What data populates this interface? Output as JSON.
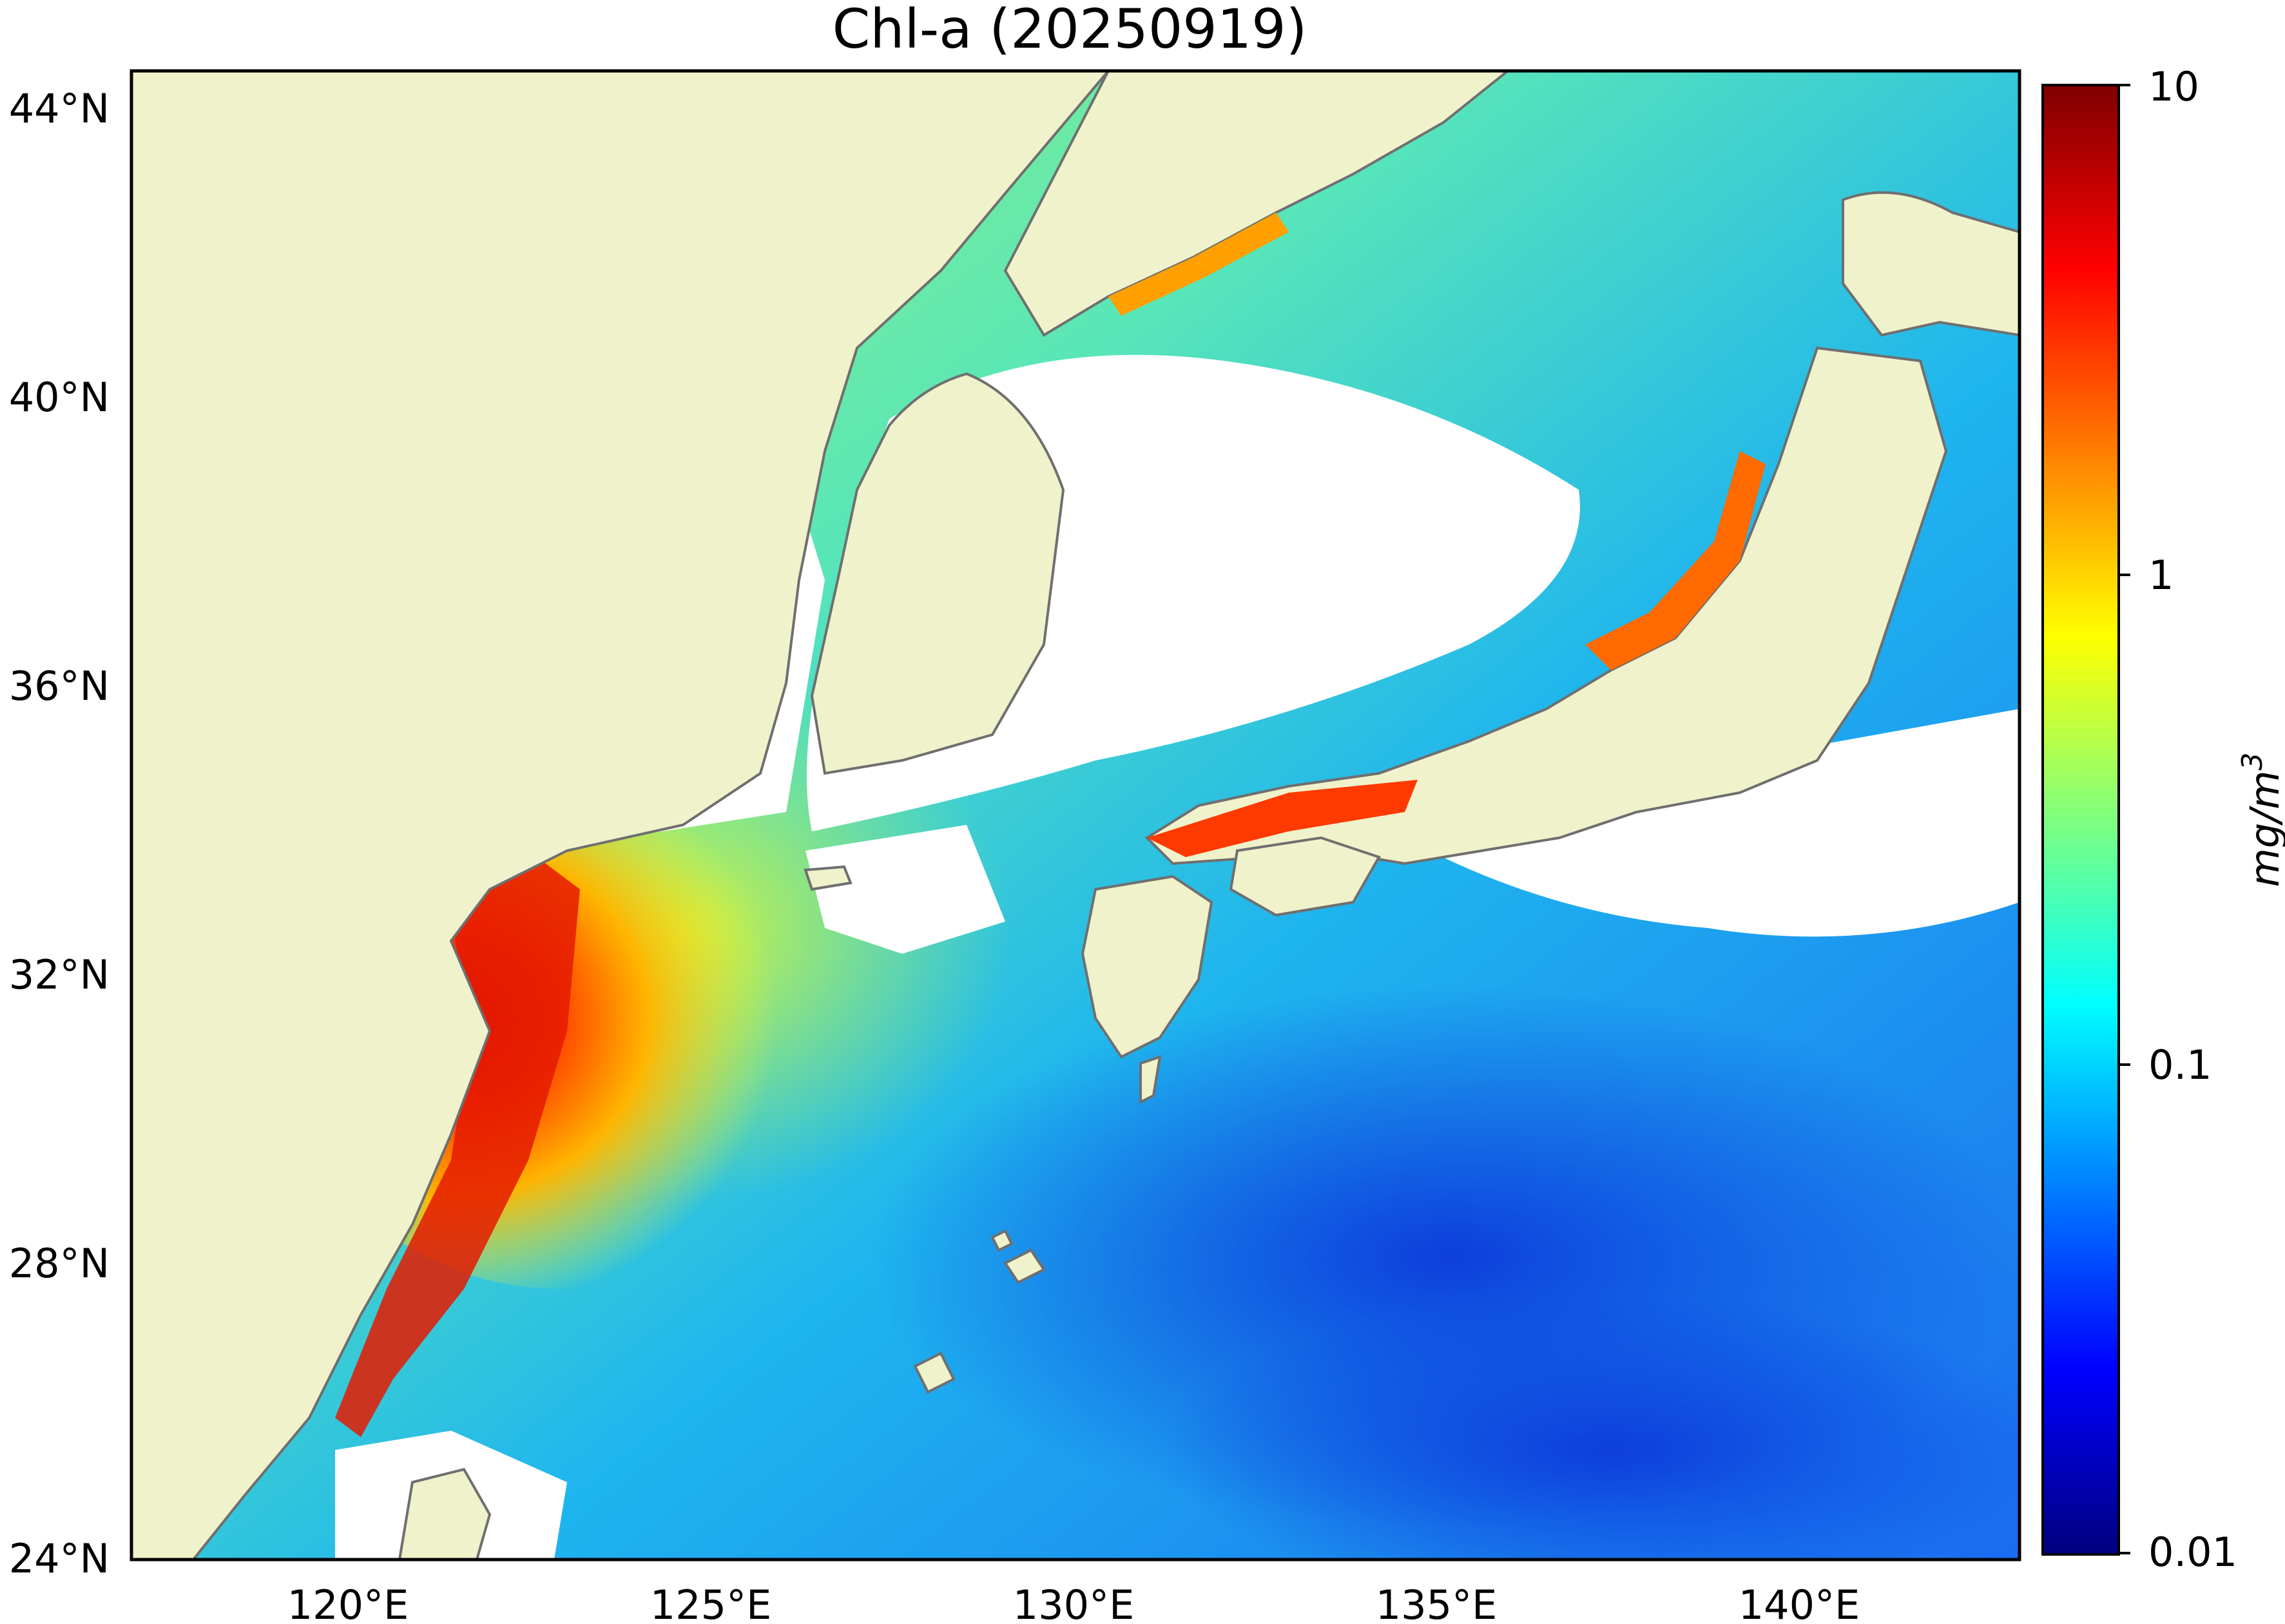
{
  "title": "Chl-a (20250919)",
  "map": {
    "lon_range": [
      117,
      143
    ],
    "lat_range": [
      24,
      44.5
    ],
    "lon_ticks": [
      {
        "value": 120,
        "label": "120°E"
      },
      {
        "value": 125,
        "label": "125°E"
      },
      {
        "value": 130,
        "label": "130°E"
      },
      {
        "value": 135,
        "label": "135°E"
      },
      {
        "value": 140,
        "label": "140°E"
      }
    ],
    "lat_ticks": [
      {
        "value": 24,
        "label": "24°N"
      },
      {
        "value": 28,
        "label": "28°N"
      },
      {
        "value": 32,
        "label": "32°N"
      },
      {
        "value": 36,
        "label": "36°N"
      },
      {
        "value": 40,
        "label": "40°N"
      },
      {
        "value": 44,
        "label": "44°N"
      }
    ],
    "colors": {
      "land": "#f0f2cb",
      "coast": "#6f6f6f",
      "no_data": "#ffffff"
    }
  },
  "colorbar": {
    "unit_label": "mg/m",
    "unit_superscript": "3",
    "scale": "log",
    "range": [
      0.01,
      10
    ],
    "ticks": [
      {
        "value": 10,
        "label": "10"
      },
      {
        "value": 1,
        "label": "1"
      },
      {
        "value": 0.1,
        "label": "0.1"
      },
      {
        "value": 0.01,
        "label": "0.01"
      }
    ],
    "colormap": [
      "#00007f",
      "#0000ff",
      "#007fff",
      "#00ffff",
      "#7fff7f",
      "#ffff00",
      "#ff7f00",
      "#ff0000",
      "#7f0000"
    ]
  }
}
